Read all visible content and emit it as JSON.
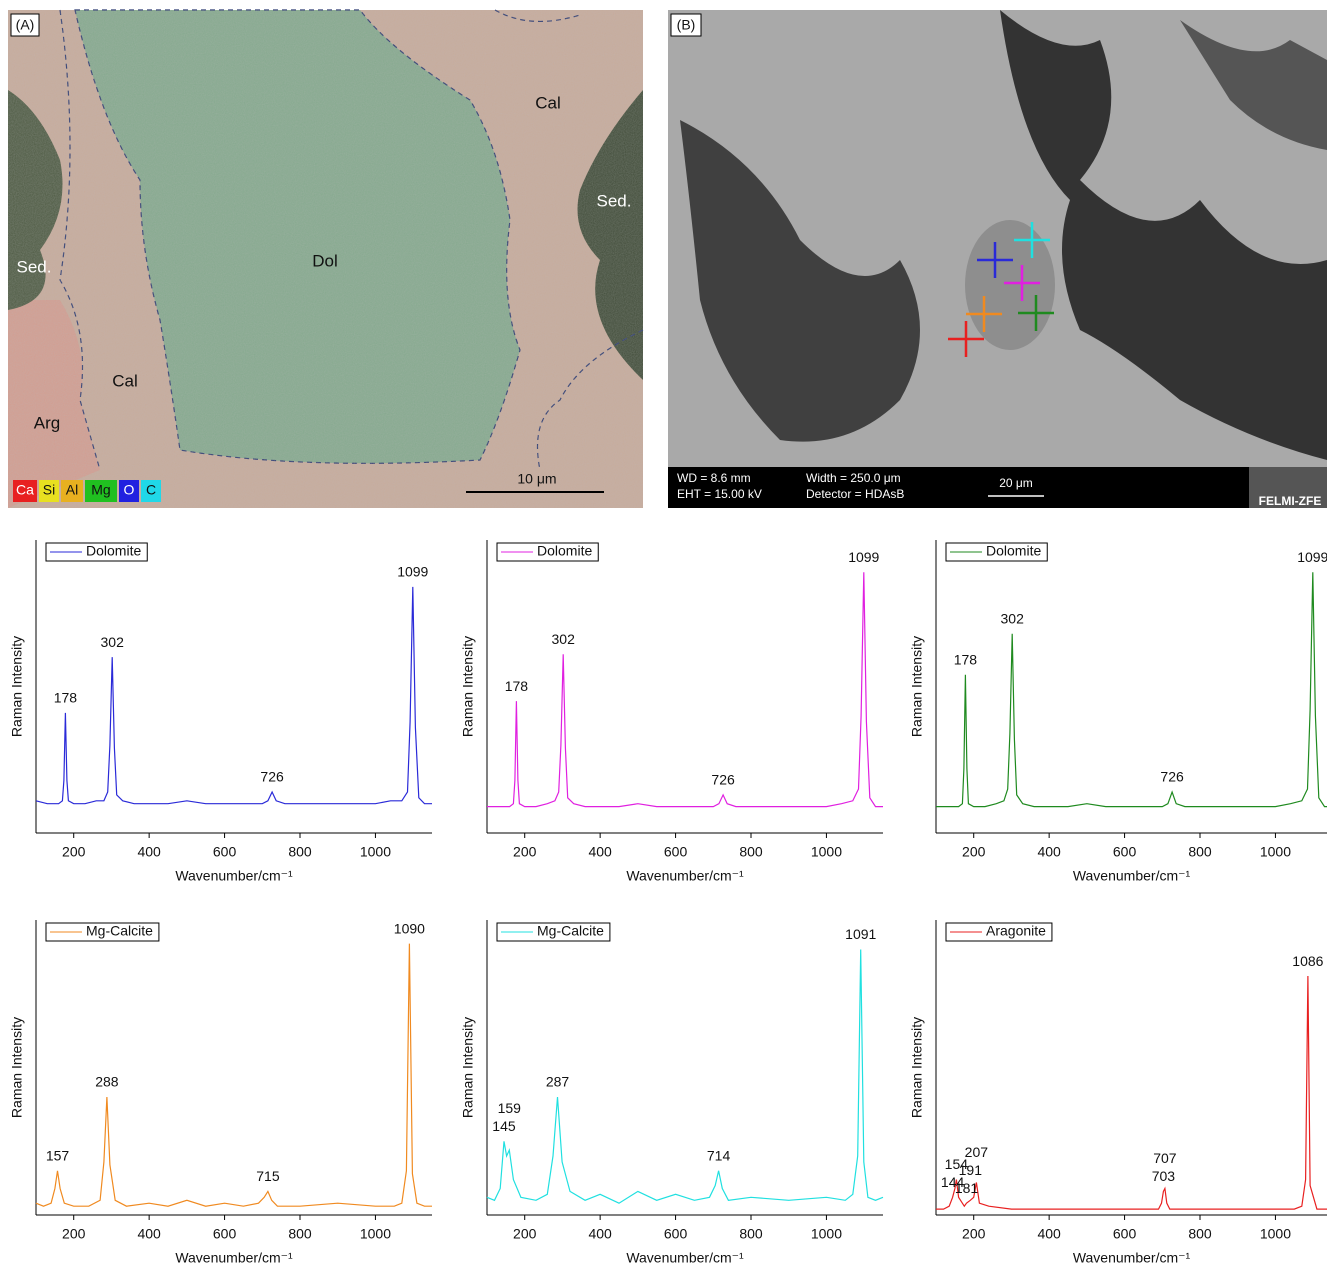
{
  "panel_a": {
    "label": "(A)",
    "regions": [
      "Cal",
      "Sed.",
      "Sed.",
      "Dol",
      "Cal",
      "Arg"
    ],
    "elements": [
      "Ca",
      "Si",
      "Al",
      "Mg",
      "O",
      "C"
    ],
    "scale": "10 μm"
  },
  "panel_b": {
    "label": "(B)",
    "info": [
      "WD = 8.6 mm",
      "EHT = 15.00 kV",
      "Width = 250.0 μm",
      "Detector = HDAsB"
    ],
    "scale": "20 μm",
    "logo": "FELMI-ZFE"
  },
  "chart_data": [
    {
      "type": "line",
      "xlabel": "Wavenumber/cm⁻¹",
      "ylabel": "Raman Intensity",
      "xlim": [
        100,
        1150
      ],
      "xticks": [
        200,
        400,
        600,
        800,
        1000
      ],
      "ylim": [
        0,
        100
      ],
      "x": [
        100,
        130,
        160,
        170,
        174,
        178,
        182,
        186,
        200,
        230,
        260,
        280,
        290,
        296,
        302,
        308,
        314,
        330,
        360,
        400,
        450,
        500,
        550,
        600,
        650,
        700,
        715,
        726,
        737,
        760,
        800,
        850,
        900,
        950,
        1000,
        1040,
        1070,
        1085,
        1092,
        1099,
        1106,
        1115,
        1130,
        1150
      ],
      "series": [
        {
          "name": "Dolomite",
          "color": "#2a2ad8",
          "values": [
            11,
            10,
            10,
            11,
            18,
            41,
            18,
            11,
            10,
            10,
            11,
            11,
            14,
            30,
            60,
            29,
            13,
            11,
            10,
            10,
            10,
            11,
            10,
            10,
            10,
            10,
            11,
            14,
            11,
            10,
            10,
            10,
            10,
            10,
            10,
            11,
            11,
            14,
            38,
            84,
            36,
            12,
            10,
            10
          ]
        }
      ],
      "annotations": [
        178,
        302,
        726,
        1099
      ]
    },
    {
      "type": "line",
      "xlabel": "Wavenumber/cm⁻¹",
      "ylabel": "Raman Intensity",
      "xlim": [
        100,
        1150
      ],
      "xticks": [
        200,
        400,
        600,
        800,
        1000
      ],
      "ylim": [
        0,
        100
      ],
      "x": [
        100,
        130,
        160,
        170,
        174,
        178,
        182,
        186,
        200,
        230,
        260,
        280,
        290,
        296,
        302,
        308,
        314,
        330,
        360,
        400,
        450,
        500,
        550,
        600,
        650,
        700,
        715,
        726,
        737,
        760,
        800,
        850,
        900,
        950,
        1000,
        1040,
        1070,
        1085,
        1092,
        1099,
        1106,
        1115,
        1130,
        1150
      ],
      "series": [
        {
          "name": "Dolomite",
          "color": "#e020e0",
          "values": [
            9,
            9,
            9,
            10,
            18,
            45,
            18,
            10,
            9,
            9,
            10,
            11,
            14,
            30,
            61,
            29,
            12,
            10,
            9,
            9,
            9,
            10,
            9,
            9,
            9,
            9,
            10,
            13,
            10,
            9,
            9,
            9,
            9,
            9,
            9,
            10,
            11,
            15,
            40,
            89,
            38,
            12,
            9,
            9
          ]
        }
      ],
      "annotations": [
        178,
        302,
        726,
        1099
      ]
    },
    {
      "type": "line",
      "xlabel": "Wavenumber/cm⁻¹",
      "ylabel": "Raman Intensity",
      "xlim": [
        100,
        1150
      ],
      "xticks": [
        200,
        400,
        600,
        800,
        1000
      ],
      "ylim": [
        0,
        100
      ],
      "x": [
        100,
        130,
        160,
        170,
        174,
        178,
        182,
        186,
        200,
        230,
        260,
        280,
        290,
        296,
        302,
        308,
        314,
        330,
        360,
        400,
        450,
        500,
        550,
        600,
        650,
        700,
        715,
        726,
        737,
        760,
        800,
        850,
        900,
        950,
        1000,
        1040,
        1070,
        1085,
        1092,
        1099,
        1106,
        1115,
        1130,
        1150
      ],
      "series": [
        {
          "name": "Dolomite",
          "color": "#1f8a1f",
          "values": [
            9,
            9,
            9,
            10,
            22,
            54,
            22,
            10,
            9,
            9,
            10,
            11,
            15,
            34,
            68,
            32,
            13,
            10,
            9,
            9,
            9,
            10,
            9,
            9,
            9,
            9,
            10,
            14,
            10,
            9,
            9,
            9,
            9,
            9,
            9,
            10,
            11,
            15,
            42,
            89,
            40,
            12,
            9,
            9
          ]
        }
      ],
      "annotations": [
        178,
        302,
        726,
        1099
      ]
    },
    {
      "type": "line",
      "xlabel": "Wavenumber/cm⁻¹",
      "ylabel": "Raman Intensity",
      "xlim": [
        100,
        1150
      ],
      "xticks": [
        200,
        400,
        600,
        800,
        1000
      ],
      "ylim": [
        0,
        100
      ],
      "x": [
        100,
        120,
        140,
        150,
        157,
        164,
        175,
        200,
        240,
        270,
        280,
        288,
        296,
        310,
        340,
        400,
        450,
        500,
        550,
        600,
        650,
        690,
        705,
        715,
        725,
        740,
        800,
        900,
        1000,
        1050,
        1070,
        1082,
        1090,
        1098,
        1110,
        1130,
        1150
      ],
      "series": [
        {
          "name": "Mg-Calcite",
          "color": "#f08a20",
          "values": [
            4,
            3,
            4,
            9,
            15,
            9,
            4,
            3,
            3,
            5,
            18,
            40,
            17,
            5,
            3,
            4,
            3,
            5,
            3,
            4,
            3,
            4,
            6,
            8,
            5,
            3,
            3,
            4,
            3,
            3,
            4,
            15,
            92,
            14,
            4,
            3,
            3
          ]
        }
      ],
      "annotations": [
        157,
        288,
        715,
        1090
      ]
    },
    {
      "type": "line",
      "xlabel": "Wavenumber/cm⁻¹",
      "ylabel": "Raman Intensity",
      "xlim": [
        100,
        1150
      ],
      "xticks": [
        200,
        400,
        600,
        800,
        1000
      ],
      "ylim": [
        0,
        100
      ],
      "x": [
        100,
        120,
        135,
        145,
        152,
        159,
        170,
        190,
        230,
        260,
        275,
        287,
        299,
        320,
        360,
        400,
        450,
        500,
        550,
        600,
        650,
        690,
        705,
        714,
        724,
        740,
        800,
        900,
        1000,
        1050,
        1070,
        1083,
        1091,
        1099,
        1110,
        1130,
        1150
      ],
      "series": [
        {
          "name": "Mg-Calcite",
          "color": "#20e0e0",
          "values": [
            6,
            5,
            9,
            25,
            20,
            22,
            12,
            6,
            5,
            7,
            20,
            40,
            18,
            8,
            5,
            7,
            4,
            8,
            5,
            7,
            5,
            6,
            10,
            15,
            9,
            5,
            6,
            5,
            6,
            5,
            7,
            20,
            90,
            18,
            6,
            5,
            6
          ]
        }
      ],
      "annotations": [
        145,
        159,
        287,
        714,
        1091
      ]
    },
    {
      "type": "line",
      "xlabel": "Wavenumber/cm⁻¹",
      "ylabel": "Raman Intensity",
      "xlim": [
        100,
        1150
      ],
      "xticks": [
        200,
        400,
        600,
        800,
        1000
      ],
      "ylim": [
        0,
        100
      ],
      "x": [
        100,
        120,
        135,
        144,
        150,
        154,
        160,
        175,
        181,
        191,
        200,
        207,
        215,
        240,
        300,
        400,
        500,
        600,
        650,
        690,
        698,
        703,
        707,
        712,
        720,
        800,
        900,
        1000,
        1050,
        1070,
        1080,
        1086,
        1092,
        1110,
        1150
      ],
      "series": [
        {
          "name": "Aragonite",
          "color": "#e82020",
          "values": [
            2,
            2,
            3,
            6,
            9,
            12,
            6,
            3,
            4,
            5,
            6,
            11,
            4,
            3,
            2,
            2,
            2,
            2,
            2,
            2,
            4,
            8,
            9,
            4,
            2,
            2,
            2,
            2,
            2,
            3,
            12,
            81,
            10,
            2,
            2
          ]
        }
      ],
      "annotations": [
        144,
        154,
        181,
        191,
        207,
        703,
        707,
        1086
      ]
    }
  ]
}
